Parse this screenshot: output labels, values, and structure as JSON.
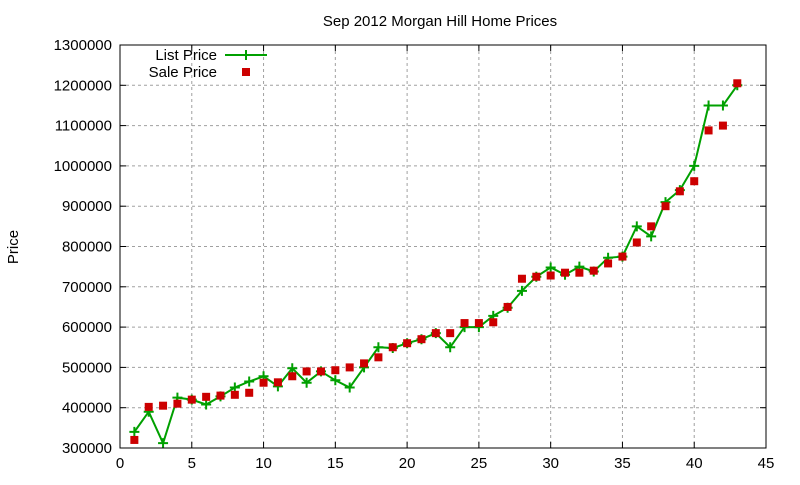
{
  "chart_data": {
    "type": "line",
    "title": "Sep 2012 Morgan Hill Home Prices",
    "xlabel": "",
    "ylabel": "Price",
    "xlim": [
      0,
      45
    ],
    "ylim": [
      300000,
      1300000
    ],
    "xticks": [
      "0",
      "5",
      "10",
      "15",
      "20",
      "25",
      "30",
      "35",
      "40",
      "45"
    ],
    "yticks": [
      "300000",
      "400000",
      "500000",
      "600000",
      "700000",
      "800000",
      "900000",
      "1000000",
      "1100000",
      "1200000",
      "1300000"
    ],
    "grid": true,
    "legend_placement": "top-left",
    "x": [
      1,
      2,
      3,
      4,
      5,
      6,
      7,
      8,
      9,
      10,
      11,
      12,
      13,
      14,
      15,
      16,
      17,
      18,
      19,
      20,
      21,
      22,
      23,
      24,
      25,
      26,
      27,
      28,
      29,
      30,
      31,
      32,
      33,
      34,
      35,
      36,
      37,
      38,
      39,
      40,
      41,
      42,
      43
    ],
    "series": [
      {
        "name": "List Price",
        "style": "linespoints",
        "color": "#00a000",
        "values": [
          340000,
          390000,
          312000,
          425000,
          420000,
          408000,
          428000,
          450000,
          465000,
          478000,
          453000,
          498000,
          462000,
          490000,
          468000,
          450000,
          500000,
          550000,
          548000,
          560000,
          570000,
          585000,
          550000,
          600000,
          600000,
          628000,
          648000,
          690000,
          725000,
          748000,
          730000,
          750000,
          738000,
          772000,
          775000,
          850000,
          825000,
          910000,
          940000,
          1000000,
          1150000,
          1150000,
          1200000
        ]
      },
      {
        "name": "Sale Price",
        "style": "points",
        "color": "#cc0000",
        "values": [
          320000,
          402000,
          405000,
          410000,
          420000,
          427000,
          430000,
          432000,
          437000,
          462000,
          463000,
          478000,
          490000,
          490000,
          493000,
          500000,
          510000,
          525000,
          550000,
          560000,
          570000,
          585000,
          585000,
          610000,
          610000,
          612000,
          650000,
          720000,
          725000,
          728000,
          735000,
          735000,
          740000,
          758000,
          775000,
          810000,
          850000,
          900000,
          937000,
          962000,
          1088000,
          1100000,
          1205000
        ]
      }
    ]
  }
}
